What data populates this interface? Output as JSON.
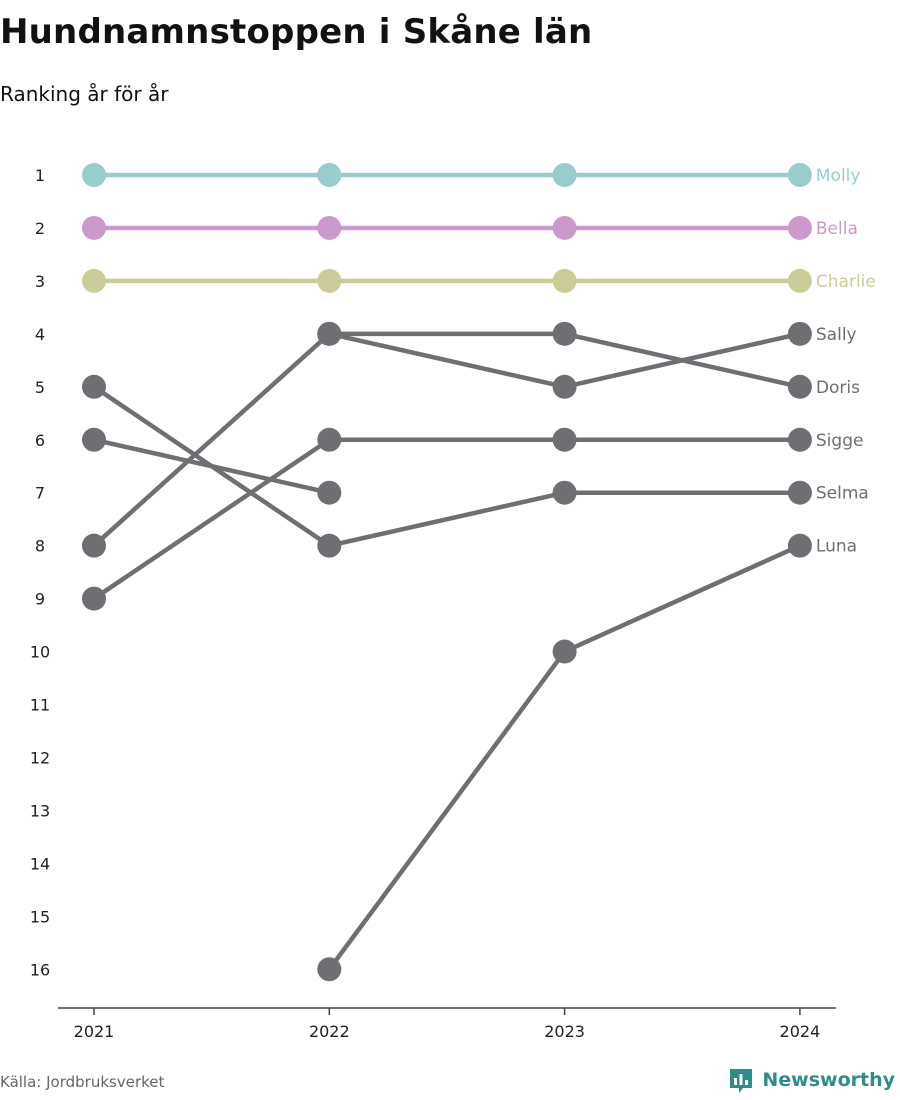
{
  "title": "Hundnamnstoppen i Skåne län",
  "subtitle": "Ranking år för år",
  "source": "Källa: Jordbruksverket",
  "brand": "Newsworthy",
  "colors": {
    "molly": "#99cccc",
    "bella": "#cc99cc",
    "charlie": "#cccc99",
    "other": "#6e6e73",
    "axis": "#444444",
    "brand": "#2e8c8c"
  },
  "chart_data": {
    "type": "line",
    "x": [
      "2021",
      "2022",
      "2023",
      "2024"
    ],
    "y_ticks": [
      1,
      2,
      3,
      4,
      5,
      6,
      7,
      8,
      9,
      10,
      11,
      12,
      13,
      14,
      15,
      16
    ],
    "ylim": [
      1,
      16
    ],
    "y_reversed": true,
    "series": [
      {
        "name": "Molly",
        "color": "#99cccc",
        "values": [
          1,
          1,
          1,
          1
        ]
      },
      {
        "name": "Bella",
        "color": "#cc99cc",
        "values": [
          2,
          2,
          2,
          2
        ]
      },
      {
        "name": "Charlie",
        "color": "#cccc99",
        "values": [
          3,
          3,
          3,
          3
        ]
      },
      {
        "name": "Sally",
        "color": "#6e6e73",
        "values": [
          8,
          4,
          5,
          4
        ]
      },
      {
        "name": "Doris",
        "color": "#6e6e73",
        "values": [
          null,
          4,
          4,
          5
        ]
      },
      {
        "name": "Sigge",
        "color": "#6e6e73",
        "values": [
          9,
          6,
          6,
          6
        ]
      },
      {
        "name": "Selma",
        "color": "#6e6e73",
        "values": [
          5,
          8,
          7,
          7
        ]
      },
      {
        "name": "Luna",
        "color": "#6e6e73",
        "values": [
          null,
          16,
          10,
          8
        ]
      },
      {
        "name": "",
        "color": "#6e6e73",
        "values": [
          6,
          7,
          null,
          null
        ]
      }
    ]
  }
}
